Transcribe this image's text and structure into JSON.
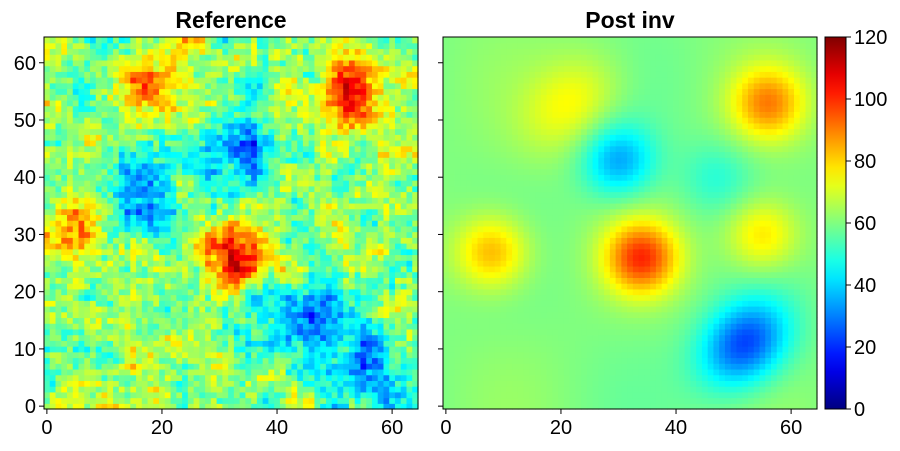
{
  "chart_data": [
    {
      "type": "heatmap",
      "title": "Reference",
      "xlim": [
        0,
        64
      ],
      "ylim": [
        0,
        64
      ],
      "xticks": [
        0,
        20,
        40,
        60
      ],
      "yticks": [
        0,
        10,
        20,
        30,
        40,
        50,
        60
      ],
      "y_tick_labels_visible": true,
      "field": "noisy gaussian random field, 65x65 cells",
      "features": [
        {
          "kind": "high",
          "x": 33,
          "y": 27,
          "value": 118
        },
        {
          "kind": "high",
          "x": 53,
          "y": 54,
          "value": 108
        },
        {
          "kind": "high",
          "x": 18,
          "y": 56,
          "value": 100
        },
        {
          "kind": "high",
          "x": 5,
          "y": 32,
          "value": 98
        },
        {
          "kind": "low",
          "x": 17,
          "y": 36,
          "value": 18
        },
        {
          "kind": "low",
          "x": 33,
          "y": 45,
          "value": 22
        },
        {
          "kind": "low",
          "x": 55,
          "y": 7,
          "value": 22
        },
        {
          "kind": "low",
          "x": 45,
          "y": 14,
          "value": 30
        }
      ]
    },
    {
      "type": "heatmap",
      "title": "Post inv",
      "xlim": [
        0,
        64
      ],
      "ylim": [
        0,
        64
      ],
      "xticks": [
        0,
        20,
        40,
        60
      ],
      "yticks": [
        0,
        10,
        20,
        30,
        40,
        50,
        60
      ],
      "y_tick_labels_visible": false,
      "field": "smooth inverted field, 65x65 cells",
      "features": [
        {
          "kind": "high",
          "x": 34,
          "y": 26,
          "value": 98
        },
        {
          "kind": "high",
          "x": 56,
          "y": 53,
          "value": 88
        },
        {
          "kind": "high",
          "x": 8,
          "y": 27,
          "value": 85
        },
        {
          "kind": "high",
          "x": 55,
          "y": 30,
          "value": 80
        },
        {
          "kind": "high",
          "x": 22,
          "y": 53,
          "value": 75
        },
        {
          "kind": "low",
          "x": 52,
          "y": 11,
          "value": 22
        },
        {
          "kind": "low",
          "x": 30,
          "y": 43,
          "value": 35
        },
        {
          "kind": "low",
          "x": 47,
          "y": 40,
          "value": 50
        }
      ]
    }
  ],
  "colorbar": {
    "colormap": "jet",
    "vmin": 0,
    "vmax": 120,
    "ticks": [
      0,
      20,
      40,
      60,
      80,
      100,
      120
    ]
  },
  "colors": {
    "background": "#ffffff",
    "axis": "#000000"
  }
}
